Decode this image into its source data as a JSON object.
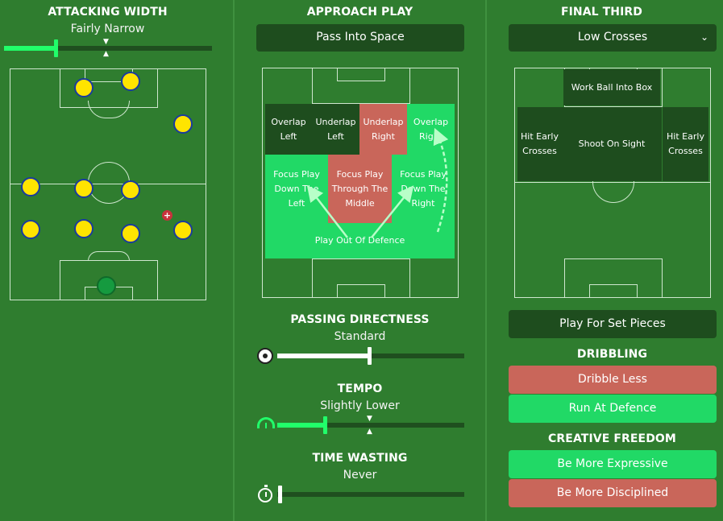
{
  "attacking_width": {
    "title": "ATTACKING WIDTH",
    "value": "Fairly Narrow",
    "level": 0.25
  },
  "approach_play": {
    "title": "APPROACH PLAY",
    "selected": "Pass Into Space",
    "zones": {
      "overlap_left": "Overlap\nLeft",
      "underlap_left": "Underlap\nLeft",
      "underlap_right": "Underlap\nRight",
      "overlap_right": "Overlap\nRight",
      "focus_left": "Focus Play\nDown The\nLeft",
      "focus_middle": "Focus Play\nThrough The\nMiddle",
      "focus_right": "Focus Play\nDown The\nRight",
      "play_out": "Play Out Of Defence"
    }
  },
  "passing_directness": {
    "title": "PASSING DIRECTNESS",
    "value": "Standard",
    "level": 0.5,
    "icon": "football-icon"
  },
  "tempo": {
    "title": "TEMPO",
    "value": "Slightly Lower",
    "level": 0.25,
    "icon": "speedometer-icon"
  },
  "time_wasting": {
    "title": "TIME WASTING",
    "value": "Never",
    "level": 0.0,
    "icon": "stopwatch-icon"
  },
  "final_third": {
    "title": "FINAL THIRD",
    "selected": "Low Crosses",
    "zones": {
      "work_ball": "Work Ball Into Box",
      "hit_early_left": "Hit Early\nCrosses",
      "shoot": "Shoot On Sight",
      "hit_early_right": "Hit Early\nCrosses"
    },
    "set_pieces": "Play For Set Pieces"
  },
  "dribbling": {
    "title": "DRIBBLING",
    "options": [
      "Dribble Less",
      "Run At Defence"
    ]
  },
  "creative_freedom": {
    "title": "CREATIVE FREEDOM",
    "options": [
      "Be More Expressive",
      "Be More Disciplined"
    ]
  },
  "colors": {
    "background": "#2f7d2f",
    "dark_button": "#1e4d1e",
    "selected_red": "#c9665a",
    "selected_green": "#21d966",
    "accent": "#21ff6a"
  }
}
